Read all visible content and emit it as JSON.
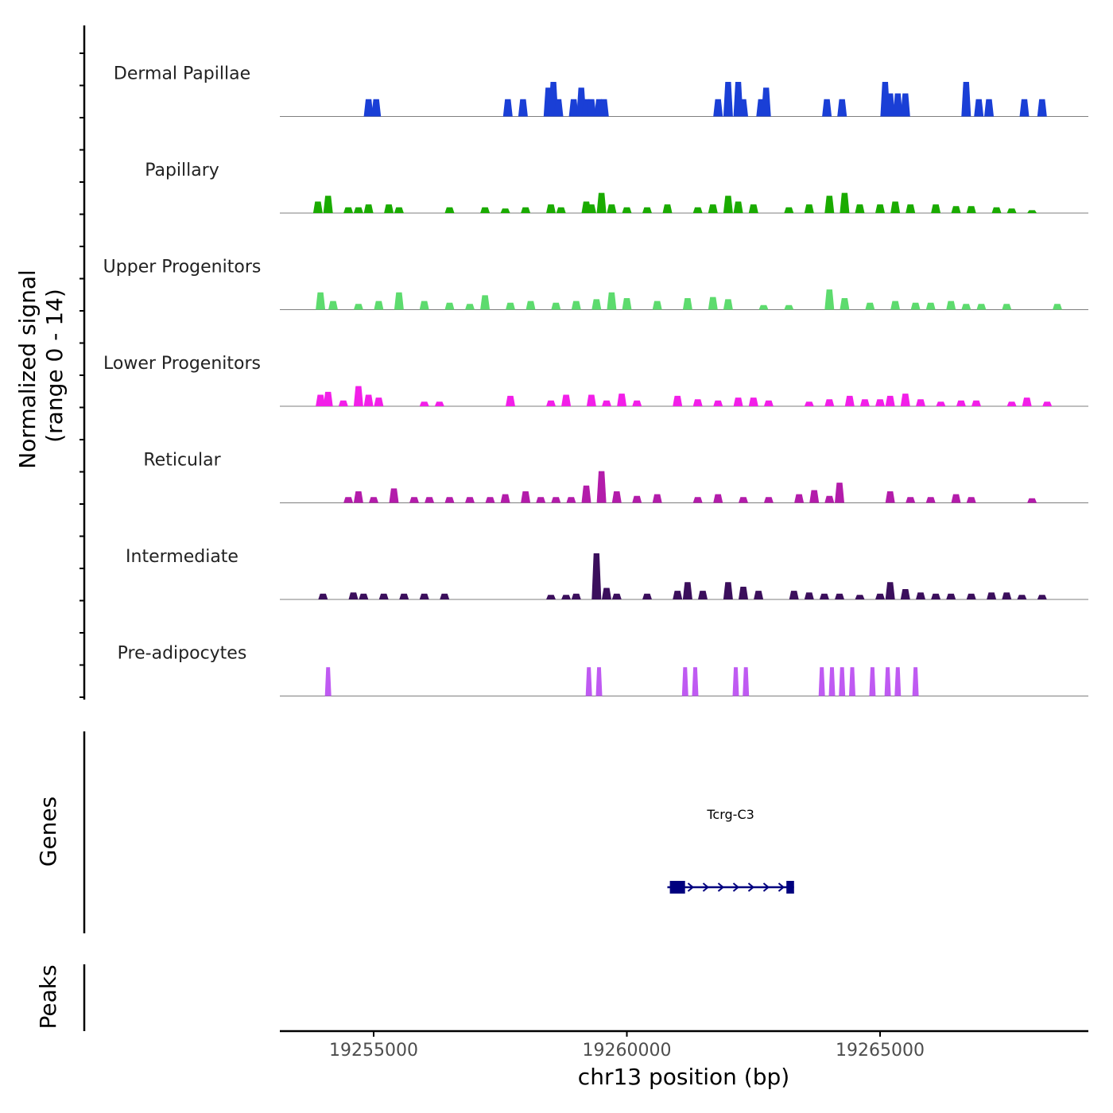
{
  "chart_data": {
    "type": "area",
    "title": "",
    "xlabel": "chr13 position (bp)",
    "ylabel": "Normalized signal\n(range 0 - 14)",
    "ylabel_lines": [
      "Normalized signal",
      "(range 0 - 14)"
    ],
    "ylim": [
      0,
      14
    ],
    "xlim": [
      19253000,
      19269000
    ],
    "x_ticks": [
      19255000,
      19260000,
      19265000
    ],
    "x_tick_labels": [
      "19255000",
      "19260000",
      "19265000"
    ],
    "tracks": [
      {
        "name": "Dermal Papillae",
        "color": "#1a3fd6",
        "peaks": [
          [
            19254900,
            3
          ],
          [
            19255050,
            3
          ],
          [
            19257650,
            3
          ],
          [
            19257950,
            3
          ],
          [
            19258450,
            5
          ],
          [
            19258550,
            6
          ],
          [
            19258650,
            3
          ],
          [
            19258950,
            3
          ],
          [
            19259100,
            5
          ],
          [
            19259200,
            3
          ],
          [
            19259300,
            3
          ],
          [
            19259450,
            3
          ],
          [
            19259550,
            3
          ],
          [
            19261800,
            3
          ],
          [
            19262000,
            6
          ],
          [
            19262200,
            6
          ],
          [
            19262300,
            3
          ],
          [
            19262650,
            3
          ],
          [
            19262750,
            5
          ],
          [
            19263950,
            3
          ],
          [
            19264250,
            3
          ],
          [
            19265100,
            6
          ],
          [
            19265200,
            4
          ],
          [
            19265350,
            4
          ],
          [
            19265500,
            4
          ],
          [
            19266700,
            6
          ],
          [
            19266950,
            3
          ],
          [
            19267150,
            3
          ],
          [
            19267850,
            3
          ],
          [
            19268200,
            3
          ]
        ]
      },
      {
        "name": "Papillary",
        "color": "#1aab00",
        "peaks": [
          [
            19253900,
            2
          ],
          [
            19254100,
            3
          ],
          [
            19254500,
            1
          ],
          [
            19254700,
            1
          ],
          [
            19254900,
            1.5
          ],
          [
            19255300,
            1.5
          ],
          [
            19255500,
            1
          ],
          [
            19256500,
            1
          ],
          [
            19257200,
            1
          ],
          [
            19257600,
            0.8
          ],
          [
            19258000,
            1
          ],
          [
            19258500,
            1.5
          ],
          [
            19258700,
            1
          ],
          [
            19259200,
            2
          ],
          [
            19259300,
            1.5
          ],
          [
            19259500,
            3.5
          ],
          [
            19259700,
            1.5
          ],
          [
            19260000,
            1
          ],
          [
            19260400,
            1
          ],
          [
            19260800,
            1.5
          ],
          [
            19261400,
            1
          ],
          [
            19261700,
            1.5
          ],
          [
            19262000,
            3
          ],
          [
            19262200,
            2
          ],
          [
            19262500,
            1.5
          ],
          [
            19263200,
            1
          ],
          [
            19263600,
            1.5
          ],
          [
            19264000,
            3
          ],
          [
            19264300,
            3.5
          ],
          [
            19264600,
            1.5
          ],
          [
            19265000,
            1.5
          ],
          [
            19265300,
            2
          ],
          [
            19265600,
            1.5
          ],
          [
            19266100,
            1.5
          ],
          [
            19266500,
            1.2
          ],
          [
            19266800,
            1.2
          ],
          [
            19267300,
            1
          ],
          [
            19267600,
            0.8
          ],
          [
            19268000,
            0.5
          ]
        ]
      },
      {
        "name": "Upper Progenitors",
        "color": "#5ddb6e",
        "peaks": [
          [
            19253950,
            3
          ],
          [
            19254200,
            1.5
          ],
          [
            19254700,
            1
          ],
          [
            19255100,
            1.5
          ],
          [
            19255500,
            3
          ],
          [
            19256000,
            1.5
          ],
          [
            19256500,
            1.2
          ],
          [
            19256900,
            1
          ],
          [
            19257200,
            2.5
          ],
          [
            19257700,
            1.2
          ],
          [
            19258100,
            1.5
          ],
          [
            19258600,
            1.2
          ],
          [
            19259000,
            1.5
          ],
          [
            19259400,
            1.8
          ],
          [
            19259700,
            3
          ],
          [
            19260000,
            2
          ],
          [
            19260600,
            1.5
          ],
          [
            19261200,
            2
          ],
          [
            19261700,
            2.2
          ],
          [
            19262000,
            1.8
          ],
          [
            19262700,
            0.8
          ],
          [
            19263200,
            0.8
          ],
          [
            19264000,
            3.5
          ],
          [
            19264300,
            2
          ],
          [
            19264800,
            1.2
          ],
          [
            19265300,
            1.5
          ],
          [
            19265700,
            1.2
          ],
          [
            19266000,
            1.2
          ],
          [
            19266400,
            1.5
          ],
          [
            19266700,
            1
          ],
          [
            19267000,
            1
          ],
          [
            19267500,
            1
          ],
          [
            19268500,
            1
          ]
        ]
      },
      {
        "name": "Lower Progenitors",
        "color": "#f21fe8",
        "peaks": [
          [
            19253950,
            2
          ],
          [
            19254100,
            2.5
          ],
          [
            19254400,
            1
          ],
          [
            19254700,
            3.5
          ],
          [
            19254900,
            2
          ],
          [
            19255100,
            1.5
          ],
          [
            19256000,
            0.8
          ],
          [
            19256300,
            0.8
          ],
          [
            19257700,
            1.8
          ],
          [
            19258500,
            1
          ],
          [
            19258800,
            2
          ],
          [
            19259300,
            2
          ],
          [
            19259600,
            1
          ],
          [
            19259900,
            2.2
          ],
          [
            19260200,
            1
          ],
          [
            19261000,
            1.8
          ],
          [
            19261400,
            1.2
          ],
          [
            19261800,
            1
          ],
          [
            19262200,
            1.5
          ],
          [
            19262500,
            1.5
          ],
          [
            19262800,
            1
          ],
          [
            19263600,
            0.8
          ],
          [
            19264000,
            1.2
          ],
          [
            19264400,
            1.8
          ],
          [
            19264700,
            1.2
          ],
          [
            19265000,
            1.2
          ],
          [
            19265200,
            1.8
          ],
          [
            19265500,
            2.2
          ],
          [
            19265800,
            1.2
          ],
          [
            19266200,
            0.8
          ],
          [
            19266600,
            1
          ],
          [
            19266900,
            1
          ],
          [
            19267600,
            0.8
          ],
          [
            19267900,
            1.5
          ],
          [
            19268300,
            0.8
          ]
        ]
      },
      {
        "name": "Reticular",
        "color": "#b31caa",
        "peaks": [
          [
            19254500,
            1
          ],
          [
            19254700,
            2
          ],
          [
            19255000,
            1
          ],
          [
            19255400,
            2.5
          ],
          [
            19255800,
            1
          ],
          [
            19256100,
            1
          ],
          [
            19256500,
            1
          ],
          [
            19256900,
            1
          ],
          [
            19257300,
            1
          ],
          [
            19257600,
            1.5
          ],
          [
            19258000,
            2
          ],
          [
            19258300,
            1
          ],
          [
            19258600,
            1
          ],
          [
            19258900,
            1
          ],
          [
            19259200,
            3
          ],
          [
            19259500,
            5.5
          ],
          [
            19259800,
            2
          ],
          [
            19260200,
            1.2
          ],
          [
            19260600,
            1.5
          ],
          [
            19261400,
            1
          ],
          [
            19261800,
            1.5
          ],
          [
            19262300,
            1
          ],
          [
            19262800,
            1
          ],
          [
            19263400,
            1.5
          ],
          [
            19263700,
            2.2
          ],
          [
            19264000,
            1.2
          ],
          [
            19264200,
            3.5
          ],
          [
            19265200,
            2
          ],
          [
            19265600,
            1
          ],
          [
            19266000,
            1
          ],
          [
            19266500,
            1.5
          ],
          [
            19266800,
            1
          ],
          [
            19268000,
            0.8
          ]
        ]
      },
      {
        "name": "Intermediate",
        "color": "#3b0f5c",
        "peaks": [
          [
            19254000,
            1
          ],
          [
            19254600,
            1.2
          ],
          [
            19254800,
            1
          ],
          [
            19255200,
            1
          ],
          [
            19255600,
            1
          ],
          [
            19256000,
            1
          ],
          [
            19256400,
            1
          ],
          [
            19258500,
            0.8
          ],
          [
            19258800,
            0.8
          ],
          [
            19259000,
            1
          ],
          [
            19259400,
            8
          ],
          [
            19259600,
            2
          ],
          [
            19259800,
            1
          ],
          [
            19260400,
            1
          ],
          [
            19261000,
            1.5
          ],
          [
            19261200,
            3
          ],
          [
            19261500,
            1.5
          ],
          [
            19262000,
            3
          ],
          [
            19262300,
            2.2
          ],
          [
            19262600,
            1.5
          ],
          [
            19263300,
            1.5
          ],
          [
            19263600,
            1.2
          ],
          [
            19263900,
            1
          ],
          [
            19264200,
            1
          ],
          [
            19264600,
            0.8
          ],
          [
            19265000,
            1
          ],
          [
            19265200,
            3
          ],
          [
            19265500,
            1.8
          ],
          [
            19265800,
            1.2
          ],
          [
            19266100,
            1
          ],
          [
            19266400,
            1
          ],
          [
            19266800,
            1
          ],
          [
            19267200,
            1.2
          ],
          [
            19267500,
            1.2
          ],
          [
            19267800,
            0.8
          ],
          [
            19268200,
            0.8
          ]
        ]
      },
      {
        "name": "Pre-adipocytes",
        "color": "#bf5af2",
        "peaks": [
          [
            19254100,
            5
          ],
          [
            19259250,
            5
          ],
          [
            19259450,
            5
          ],
          [
            19261150,
            5
          ],
          [
            19261350,
            5
          ],
          [
            19262150,
            5
          ],
          [
            19262350,
            5
          ],
          [
            19263850,
            5
          ],
          [
            19264050,
            5
          ],
          [
            19264250,
            5
          ],
          [
            19264450,
            5
          ],
          [
            19264850,
            5
          ],
          [
            19265150,
            5
          ],
          [
            19265350,
            5
          ],
          [
            19265700,
            5
          ]
        ]
      }
    ],
    "genes_panel_label": "Genes",
    "peaks_panel_label": "Peaks",
    "genes": [
      {
        "name": "Tcrg-C3",
        "start": 19260800,
        "end": 19263300,
        "strand": "+",
        "color": "#00007f",
        "exons": [
          [
            19260850,
            19261150
          ],
          [
            19263150,
            19263300
          ]
        ]
      }
    ]
  }
}
